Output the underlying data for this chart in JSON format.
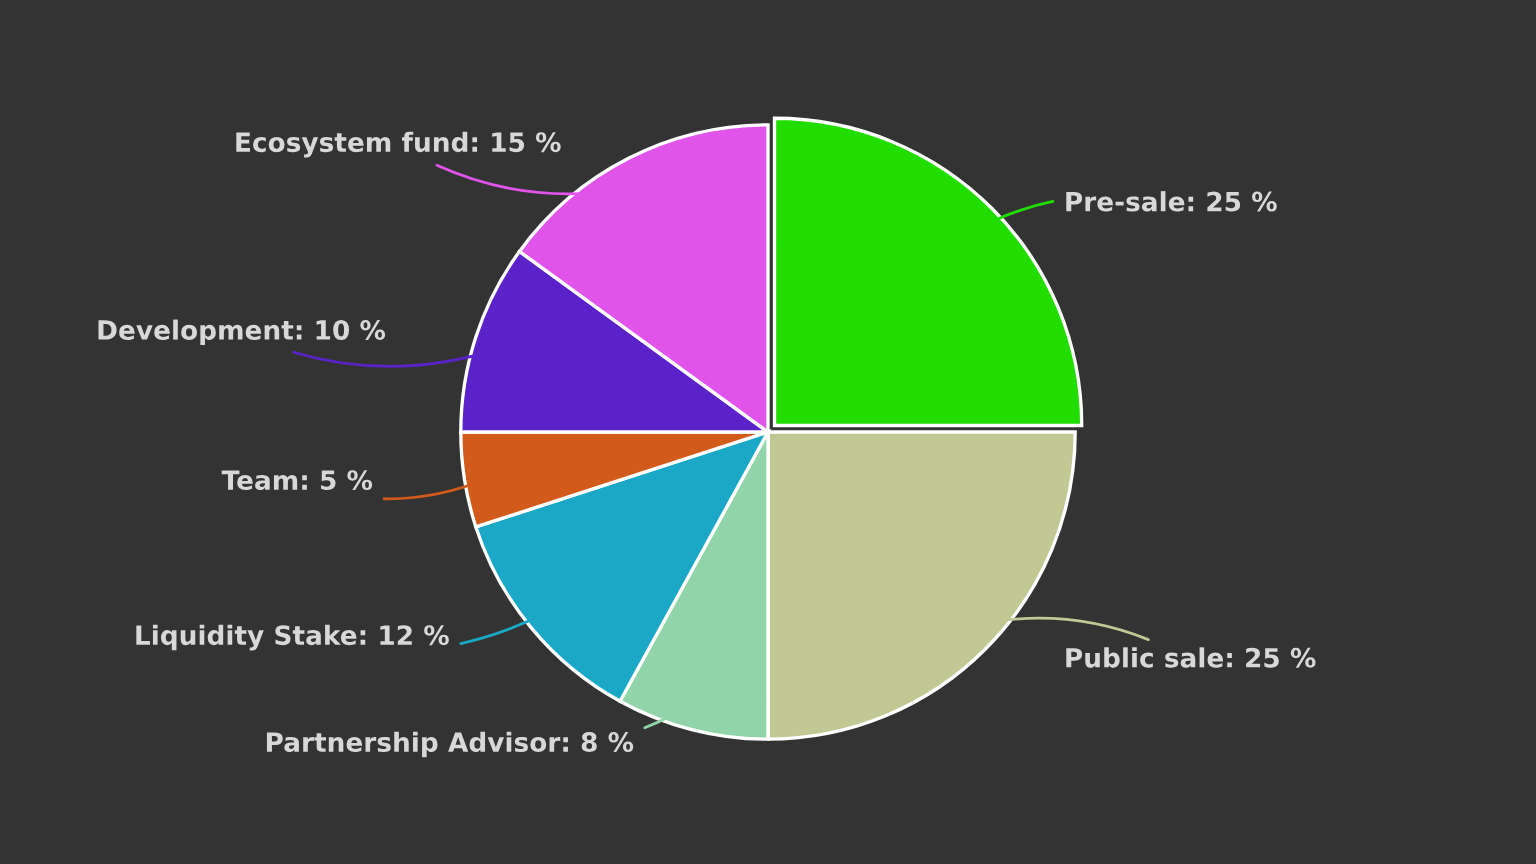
{
  "chart_data": {
    "type": "pie",
    "categories": [
      "Pre-sale",
      "Public sale",
      "Partnership Advisor",
      "Liquidity Stake",
      "Team",
      "Development",
      "Ecosystem fund"
    ],
    "values": [
      25,
      25,
      8,
      12,
      5,
      10,
      15
    ],
    "value_labels": [
      "25 %",
      "25 %",
      "8 %",
      "12 %",
      "5 %",
      "10 %",
      "15 %"
    ],
    "colors": [
      "#22dd00",
      "#c2c894",
      "#92d4aa",
      "#1aa8c6",
      "#d25a1a",
      "#5a22c8",
      "#e054ea"
    ]
  }
}
